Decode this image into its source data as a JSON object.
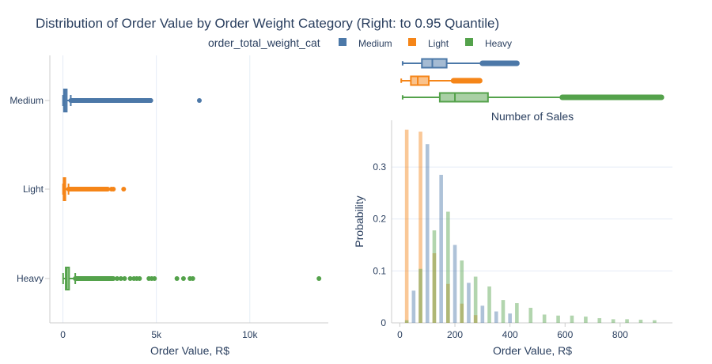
{
  "chart_data": {
    "title": "Distribution of Order Value by Order Weight Category (Right: to 0.95 Quantile)",
    "legend": {
      "title": "order_total_weight_cat",
      "placement": "top-center",
      "entries": [
        {
          "name": "Medium",
          "color": "#4c78a8"
        },
        {
          "name": "Light",
          "color": "#f58518"
        },
        {
          "name": "Heavy",
          "color": "#54a24b"
        }
      ]
    },
    "left": {
      "type": "box",
      "orientation": "horizontal",
      "xlabel": "Order Value, R$",
      "xlim": [
        -700,
        14200
      ],
      "xticks": [
        {
          "v": 0,
          "label": "0"
        },
        {
          "v": 5000,
          "label": "5k"
        },
        {
          "v": 10000,
          "label": "10k"
        }
      ],
      "grid": true,
      "categories": [
        "Medium",
        "Light",
        "Heavy"
      ],
      "boxes": [
        {
          "name": "Medium",
          "color": "#4c78a8",
          "min": 5,
          "q1": 55,
          "median": 115,
          "q3": 205,
          "max": 420,
          "outlier_range": [
            420,
            4700
          ],
          "outliers": [
            1800,
            2300,
            2800,
            3100,
            3300,
            3500,
            3700,
            3900,
            4100,
            4300,
            4500,
            4700,
            7300
          ]
        },
        {
          "name": "Light",
          "color": "#f58518",
          "min": 5,
          "q1": 35,
          "median": 75,
          "q3": 130,
          "max": 300,
          "outlier_range": [
            300,
            2400
          ],
          "outliers": [
            2600,
            2700,
            3250
          ]
        },
        {
          "name": "Heavy",
          "color": "#54a24b",
          "min": 10,
          "q1": 150,
          "median": 200,
          "q3": 330,
          "max": 660,
          "outlier_range": [
            660,
            2700
          ],
          "outliers": [
            2900,
            3100,
            3300,
            3600,
            3800,
            3950,
            4100,
            4600,
            4750,
            4900,
            6100,
            6450,
            6800,
            6950,
            13700
          ]
        }
      ]
    },
    "right_top": {
      "type": "box",
      "orientation": "horizontal",
      "xlim": [
        -30,
        990
      ],
      "boxes": [
        {
          "name": "Medium",
          "color": "#4c78a8",
          "min": 10,
          "q1": 80,
          "median": 118,
          "q3": 170,
          "max": 300,
          "outlier_range": [
            300,
            425
          ]
        },
        {
          "name": "Light",
          "color": "#f58518",
          "min": 5,
          "q1": 40,
          "median": 65,
          "q3": 105,
          "max": 195,
          "outlier_range": [
            195,
            290
          ]
        },
        {
          "name": "Heavy",
          "color": "#54a24b",
          "min": 10,
          "q1": 145,
          "median": 200,
          "q3": 320,
          "max": 590,
          "outlier_range": [
            590,
            950
          ]
        }
      ]
    },
    "right_bottom": {
      "type": "bar",
      "subtitle": "Number of Sales",
      "xlabel": "Order Value, R$",
      "ylabel": "Probability",
      "xlim": [
        -30,
        990
      ],
      "ylim": [
        0,
        0.39
      ],
      "xticks": [
        0,
        200,
        400,
        600,
        800
      ],
      "yticks": [
        0,
        0.1,
        0.2,
        0.3
      ],
      "grid": true,
      "bin_width": 50,
      "series": [
        {
          "name": "Light",
          "color": "#f58518",
          "x": [
            25,
            75,
            125,
            175,
            225,
            275
          ],
          "values": [
            0.372,
            0.368,
            0.134,
            0.075,
            0.037,
            0.015
          ]
        },
        {
          "name": "Medium",
          "color": "#4c78a8",
          "x": [
            50,
            100,
            150,
            200,
            250,
            300,
            350,
            400
          ],
          "values": [
            0.062,
            0.344,
            0.285,
            0.15,
            0.077,
            0.033,
            0.022,
            0.018
          ]
        },
        {
          "name": "Heavy",
          "color": "#54a24b",
          "x": [
            25,
            75,
            125,
            175,
            225,
            275,
            325,
            375,
            425,
            475,
            525,
            575,
            625,
            675,
            725,
            775,
            825,
            875,
            925
          ],
          "values": [
            0.005,
            0.104,
            0.178,
            0.214,
            0.12,
            0.089,
            0.07,
            0.044,
            0.038,
            0.029,
            0.016,
            0.014,
            0.014,
            0.012,
            0.009,
            0.007,
            0.007,
            0.006,
            0.005
          ]
        }
      ]
    }
  }
}
